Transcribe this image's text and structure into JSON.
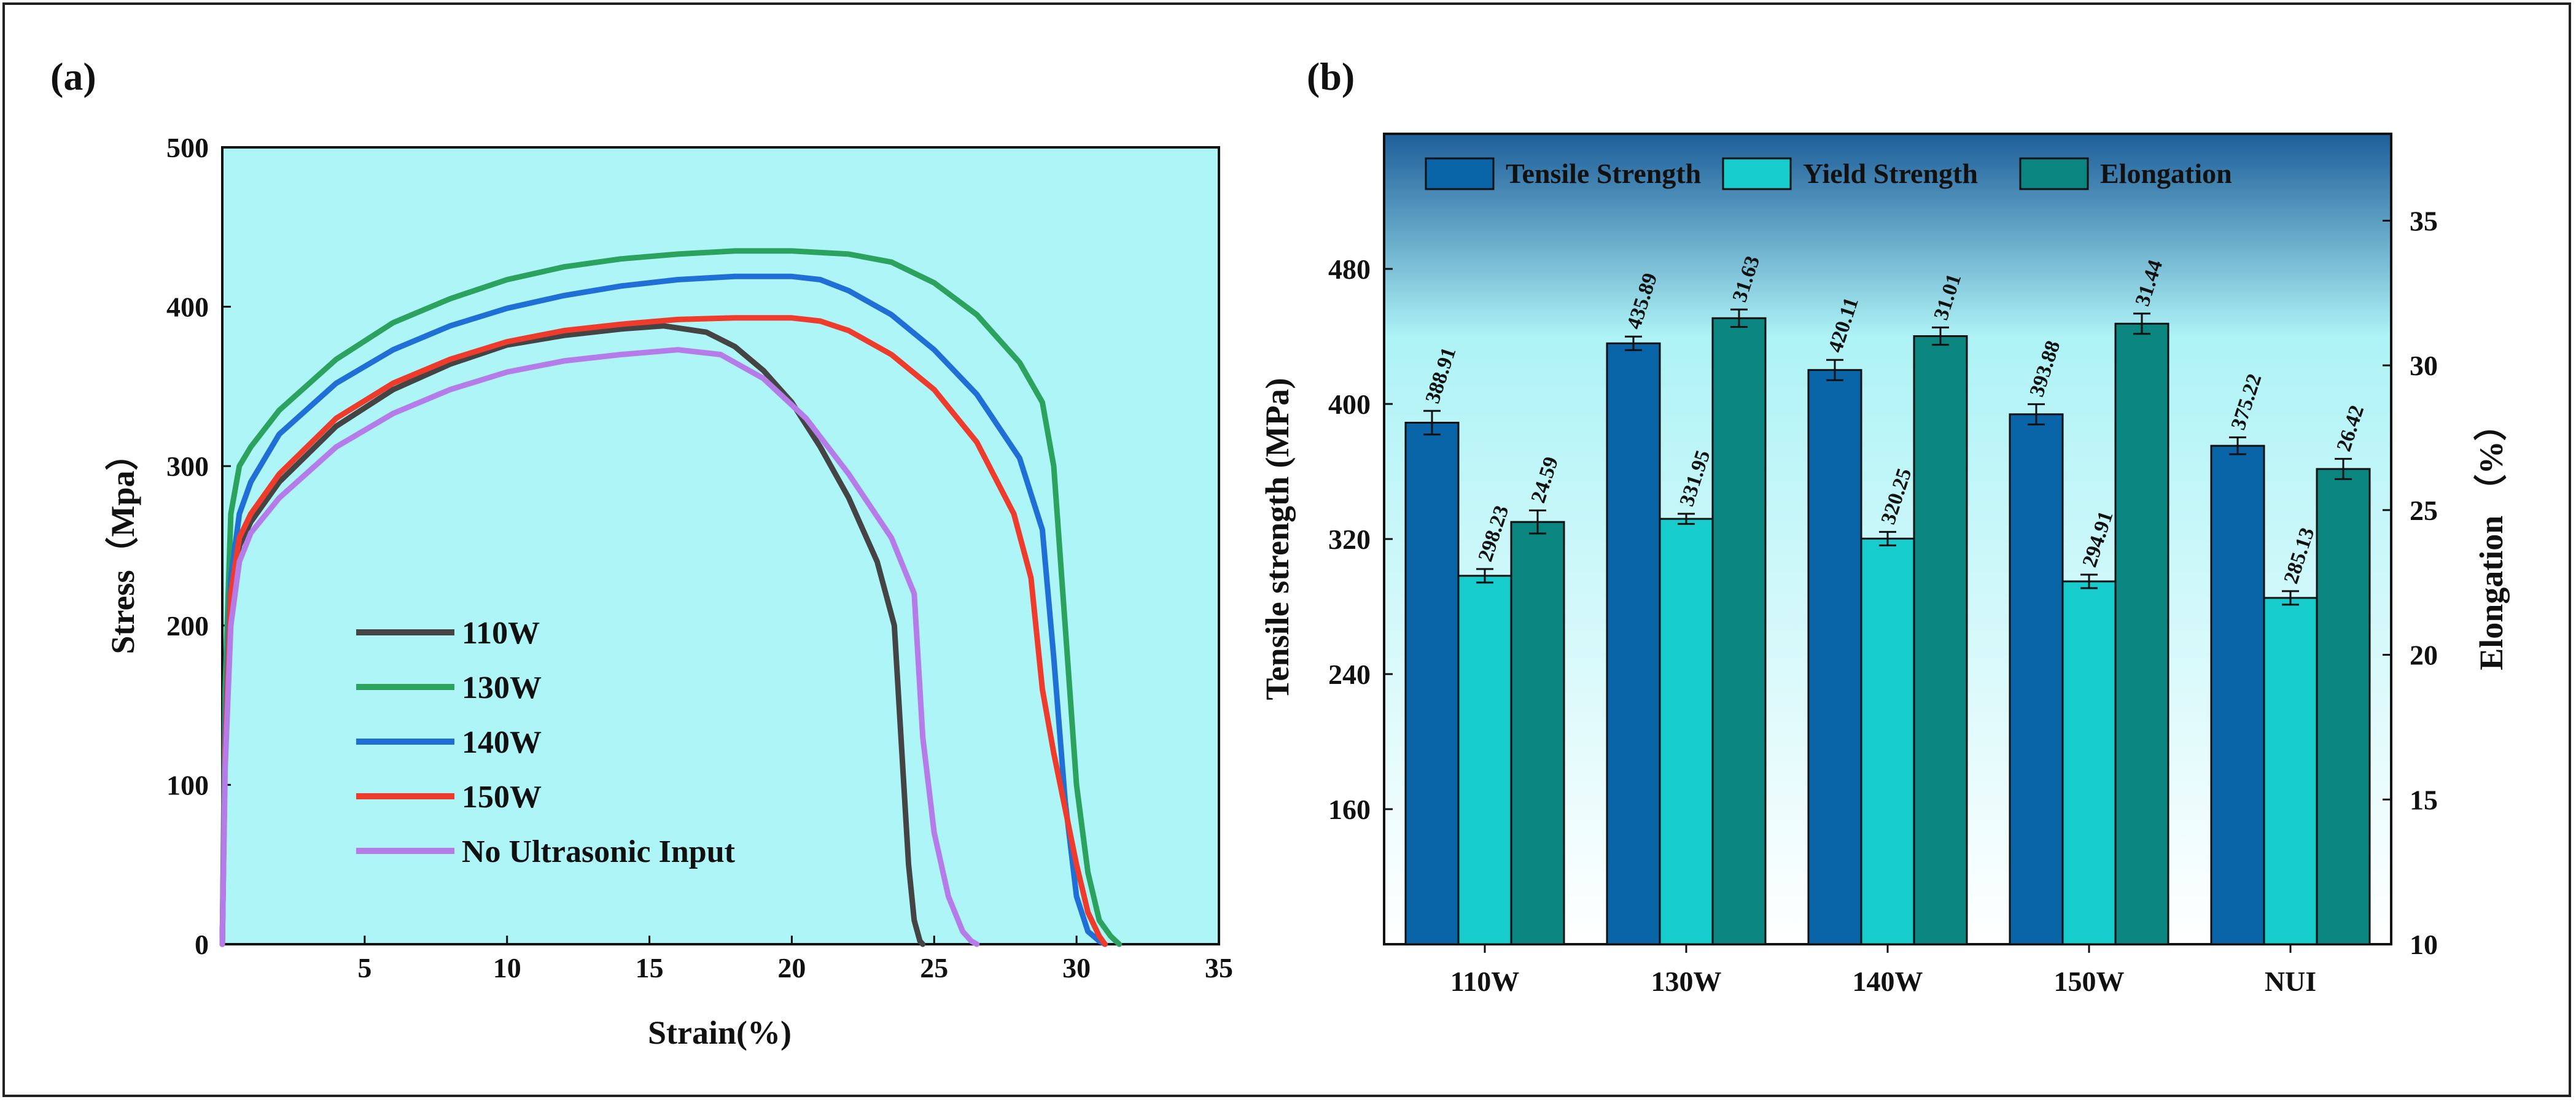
{
  "panel_a_label": "(a)",
  "panel_b_label": "(b)",
  "chart_data": [
    {
      "type": "line",
      "panel": "(a)",
      "xlabel": "Strain(%)",
      "ylabel": "Stress（Mpa）",
      "xlim": [
        0,
        35
      ],
      "ylim": [
        0,
        500
      ],
      "xticks": [
        5,
        10,
        15,
        20,
        25,
        30,
        35
      ],
      "yticks": [
        0,
        100,
        200,
        300,
        400,
        500
      ],
      "background": "#aef5f8",
      "legend_position": "lower-left",
      "series": [
        {
          "name": "110W",
          "color": "#444444",
          "x": [
            0,
            0.1,
            0.3,
            0.6,
            1,
            2,
            4,
            6,
            8,
            10,
            12,
            14,
            15.5,
            17,
            18,
            19,
            20,
            21,
            22,
            23,
            23.6,
            23.9,
            24.1,
            24.3,
            24.5,
            24.6
          ],
          "y": [
            0,
            120,
            210,
            250,
            265,
            290,
            325,
            348,
            364,
            376,
            382,
            386,
            388,
            384,
            375,
            360,
            340,
            312,
            280,
            240,
            200,
            110,
            50,
            15,
            2,
            0
          ]
        },
        {
          "name": "130W",
          "color": "#2ca25f",
          "x": [
            0,
            0.1,
            0.3,
            0.6,
            1,
            2,
            4,
            6,
            8,
            10,
            12,
            14,
            16,
            18,
            20,
            22,
            23.5,
            25,
            26.5,
            28,
            28.8,
            29.2,
            29.6,
            30,
            30.4,
            30.8,
            31.2,
            31.5
          ],
          "y": [
            0,
            160,
            270,
            300,
            312,
            335,
            367,
            390,
            405,
            417,
            425,
            430,
            433,
            435,
            435,
            433,
            428,
            415,
            395,
            365,
            340,
            300,
            200,
            100,
            45,
            15,
            5,
            0
          ]
        },
        {
          "name": "140W",
          "color": "#1f6fd6",
          "x": [
            0,
            0.1,
            0.3,
            0.6,
            1,
            2,
            4,
            6,
            8,
            10,
            12,
            14,
            16,
            18,
            20,
            21,
            22,
            23.5,
            25,
            26.5,
            28,
            28.8,
            29.2,
            29.6,
            30,
            30.4,
            30.8,
            31
          ],
          "y": [
            0,
            130,
            230,
            270,
            290,
            320,
            352,
            373,
            388,
            399,
            407,
            413,
            417,
            419,
            419,
            417,
            410,
            395,
            373,
            345,
            305,
            260,
            180,
            90,
            30,
            8,
            2,
            0
          ]
        },
        {
          "name": "150W",
          "color": "#ef3b2c",
          "x": [
            0,
            0.1,
            0.3,
            0.6,
            1,
            2,
            4,
            6,
            8,
            10,
            12,
            14,
            16,
            18,
            20,
            21,
            22,
            23.5,
            25,
            26.5,
            27.8,
            28.4,
            28.8,
            29.2,
            29.6,
            30,
            30.4,
            30.8,
            31
          ],
          "y": [
            0,
            120,
            220,
            255,
            270,
            295,
            330,
            352,
            367,
            378,
            385,
            389,
            392,
            393,
            393,
            391,
            385,
            370,
            348,
            315,
            270,
            230,
            160,
            120,
            85,
            50,
            20,
            5,
            0
          ]
        },
        {
          "name": "No Ultrasonic Input",
          "color": "#b57be8",
          "x": [
            0,
            0.1,
            0.3,
            0.6,
            1,
            2,
            4,
            6,
            8,
            10,
            12,
            14,
            16,
            17.5,
            19,
            20.5,
            22,
            23.5,
            24.3,
            24.6,
            25,
            25.5,
            26,
            26.3,
            26.5
          ],
          "y": [
            0,
            110,
            200,
            240,
            258,
            280,
            312,
            333,
            348,
            359,
            366,
            370,
            373,
            370,
            355,
            330,
            295,
            255,
            220,
            130,
            70,
            30,
            8,
            2,
            0
          ]
        }
      ]
    },
    {
      "type": "bar",
      "panel": "(b)",
      "categories": [
        "110W",
        "130W",
        "140W",
        "150W",
        "NUI"
      ],
      "ylabel": "Tensile strength (MPa)",
      "y2label": "Elongation （%）",
      "ylim": [
        80,
        560
      ],
      "yticks": [
        160,
        240,
        320,
        400,
        480
      ],
      "y2lim": [
        10,
        38
      ],
      "y2ticks": [
        10,
        15,
        20,
        25,
        30,
        35
      ],
      "legend_position": "top",
      "series": [
        {
          "name": "Tensile Strength",
          "axis": "left",
          "color": "#0a64a8",
          "values": [
            388.91,
            435.89,
            420.11,
            393.88,
            375.22
          ],
          "labels": [
            "388.91",
            "435.89",
            "420.11",
            "393.88",
            "375.22"
          ],
          "errors": [
            7,
            4,
            6,
            6,
            5
          ]
        },
        {
          "name": "Yield Strength",
          "axis": "left",
          "color": "#16cccc",
          "values": [
            298.23,
            331.95,
            320.25,
            294.91,
            285.13
          ],
          "labels": [
            "298.23",
            "331.95",
            "320.25",
            "294.91",
            "285.13"
          ],
          "errors": [
            4,
            3,
            4,
            4,
            4
          ]
        },
        {
          "name": "Elongation",
          "axis": "right",
          "color": "#0a8580",
          "values": [
            24.59,
            31.63,
            31.01,
            31.44,
            26.42
          ],
          "labels": [
            "24.59",
            "31.63",
            "31.01",
            "31.44",
            "26.42"
          ],
          "errors": [
            0.4,
            0.3,
            0.3,
            0.35,
            0.35
          ]
        }
      ]
    }
  ]
}
